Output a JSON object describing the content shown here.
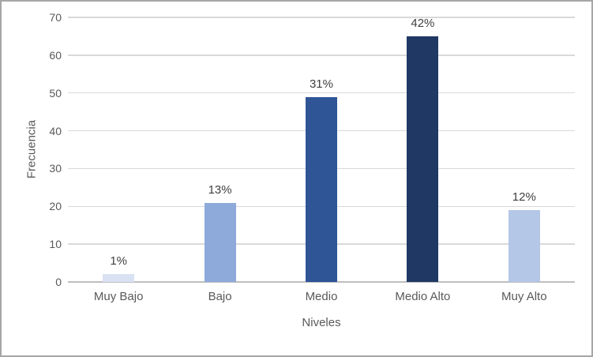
{
  "chart_data": {
    "type": "bar",
    "title": "",
    "xlabel": "Niveles",
    "ylabel": "Frecuencia",
    "categories": [
      "Muy Bajo",
      "Bajo",
      "Medio",
      "Medio Alto",
      "Muy Alto"
    ],
    "values": [
      2,
      21,
      49,
      65,
      19
    ],
    "data_labels": [
      "1%",
      "13%",
      "31%",
      "42%",
      "12%"
    ],
    "bar_colors": [
      "#d9e2f3",
      "#8eaadb",
      "#2f5597",
      "#1f3864",
      "#b4c7e7"
    ],
    "ylim": [
      0,
      70
    ],
    "ytick_step": 10,
    "ytick_labels": [
      "0",
      "10",
      "20",
      "30",
      "40",
      "50",
      "60",
      "70"
    ],
    "grid": "horizontal",
    "legend": "none",
    "colors": {
      "gridline": "#d9d9d9",
      "axis_line": "#bfbfbf",
      "tick_label": "#595959",
      "axis_title": "#595959",
      "data_label": "#404040",
      "frame_border": "#a6a6a6",
      "background": "#ffffff"
    }
  }
}
